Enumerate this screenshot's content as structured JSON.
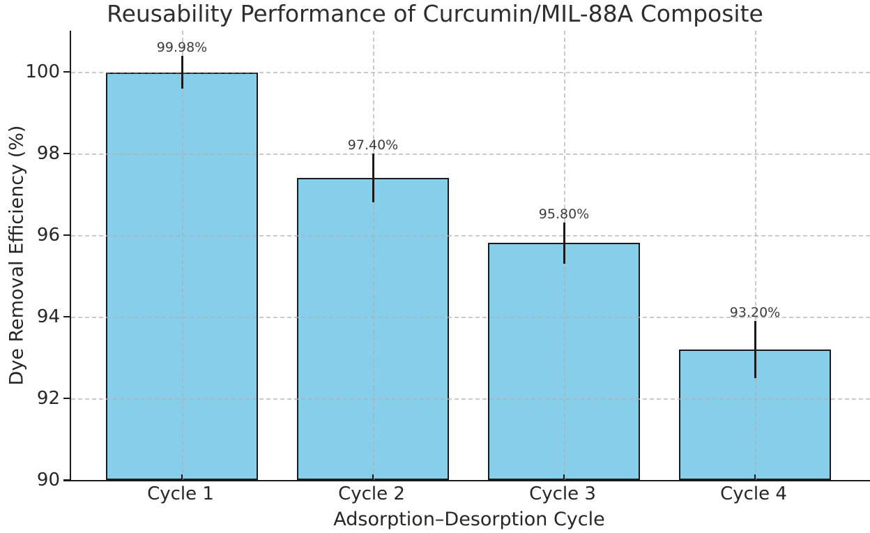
{
  "chart_data": {
    "type": "bar",
    "title": "Reusability Performance of Curcumin/MIL-88A Composite",
    "xlabel": "Adsorption–Desorption Cycle",
    "ylabel": "Dye Removal Efficiency (%)",
    "categories": [
      "Cycle 1",
      "Cycle 2",
      "Cycle 3",
      "Cycle 4"
    ],
    "values": [
      99.98,
      97.4,
      95.8,
      93.2
    ],
    "errors": [
      0.4,
      0.6,
      0.5,
      0.7
    ],
    "data_labels": [
      "99.98%",
      "97.40%",
      "95.80%",
      "93.20%"
    ],
    "yticks": [
      90,
      92,
      94,
      96,
      98,
      100
    ],
    "ylim": [
      90,
      101
    ],
    "legend": "none",
    "grid": "dashed horizontal at yticks and dashed vertical at category centers, drawn over bars",
    "colors": {
      "bar_fill": "#87CEEB",
      "bar_edge": "#1a1a1a",
      "error_bar": "#1a1a1a",
      "grid": "#adadad",
      "text": "#262626"
    }
  }
}
